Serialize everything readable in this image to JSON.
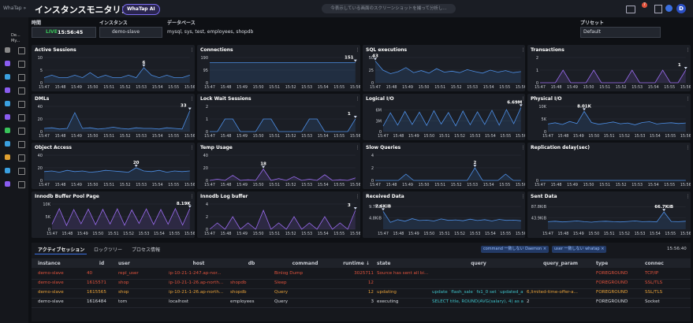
{
  "header": {
    "app": "WhaTap »",
    "title": "インスタンスモニタリング",
    "ai_button": "WhaTap AI",
    "search": "今表示している画面のスクリーンショットを撮って分析し...",
    "badge": "7",
    "avatar": "D"
  },
  "sidebar": {
    "project": "De...",
    "sub": "My..."
  },
  "filters": {
    "time_label": "時間",
    "live": "LIVE",
    "time": "15:56:45",
    "instance_label": "インスタンス",
    "instance": "demo-slave",
    "database_label": "データベース",
    "database": "mysql, sys, test, employees, shopdb",
    "preset_label": "プリセット",
    "preset": "Default"
  },
  "time_labels": [
    "15:47",
    "15:48",
    "15:49",
    "15:50",
    "15:51",
    "15:52",
    "15:53",
    "15:54",
    "15:55",
    "15:56"
  ],
  "panels": [
    {
      "title": "Active Sessions",
      "color": "#4d8fe6",
      "ylim": [
        0,
        10
      ],
      "yticks": [
        0,
        5,
        10
      ],
      "peak": 6,
      "values": [
        2,
        3,
        2,
        2,
        3,
        2,
        4,
        2,
        3,
        2,
        2,
        3,
        2,
        6,
        3,
        2,
        3,
        2,
        2,
        3
      ]
    },
    {
      "title": "Connections",
      "color": "#4d8fe6",
      "ylim": [
        0,
        190
      ],
      "yticks": [
        0,
        95,
        190
      ],
      "peak": 151,
      "values": [
        151,
        151,
        151,
        151,
        151,
        151,
        151,
        151,
        151,
        151,
        151,
        151,
        151,
        151,
        151,
        151,
        151,
        151,
        151,
        151
      ]
    },
    {
      "title": "SQL executions",
      "color": "#4d8fe6",
      "ylim": [
        0,
        50
      ],
      "yticks": [
        0,
        25,
        50
      ],
      "peak": 43,
      "values": [
        43,
        25,
        18,
        22,
        30,
        20,
        24,
        19,
        28,
        21,
        23,
        20,
        26,
        22,
        19,
        25,
        21,
        24,
        20,
        22
      ]
    },
    {
      "title": "Transactions",
      "color": "#9b6cf0",
      "ylim": [
        0,
        2
      ],
      "yticks": [
        0,
        1,
        2
      ],
      "peak": 1,
      "values": [
        0,
        0,
        0,
        1,
        0,
        0,
        0,
        1,
        0,
        0,
        0,
        0,
        1,
        0,
        0,
        0,
        1,
        0,
        0,
        1
      ]
    },
    {
      "title": "DMLs",
      "color": "#4d8fe6",
      "ylim": [
        0,
        40
      ],
      "yticks": [
        0,
        20,
        40
      ],
      "peak": 33,
      "values": [
        5,
        6,
        4,
        5,
        30,
        5,
        6,
        4,
        5,
        7,
        5,
        4,
        6,
        5,
        5,
        4,
        6,
        5,
        4,
        33
      ]
    },
    {
      "title": "Lock Wait Sessions",
      "color": "#4d8fe6",
      "ylim": [
        0,
        2
      ],
      "yticks": [
        0,
        1,
        2
      ],
      "peak": 1,
      "values": [
        0,
        0,
        1,
        1,
        0,
        0,
        0,
        1,
        1,
        0,
        0,
        0,
        0,
        1,
        1,
        0,
        0,
        0,
        0,
        1
      ]
    },
    {
      "title": "Logical I/O",
      "color": "#4d8fe6",
      "ylim": [
        0,
        7000000
      ],
      "yticks": [
        0,
        {
          "value": 3000000,
          "label": "3M"
        },
        {
          "value": 6000000,
          "label": "6M"
        }
      ],
      "peak": {
        "value": 6690000,
        "label": "6.69M"
      },
      "values": [
        1500000,
        5200000,
        1800000,
        5600000,
        2000000,
        5400000,
        1700000,
        5800000,
        2100000,
        5300000,
        1600000,
        5700000,
        1900000,
        5500000,
        2000000,
        5900000,
        1800000,
        6100000,
        2200000,
        6690000
      ]
    },
    {
      "title": "Physical I/O",
      "color": "#4d8fe6",
      "ylim": [
        0,
        10000
      ],
      "yticks": [
        0,
        {
          "value": 5000,
          "label": "5K"
        },
        {
          "value": 10000,
          "label": "10K"
        }
      ],
      "peak": {
        "value": 8010,
        "label": "8.01K"
      },
      "values": [
        3000,
        3500,
        2800,
        4000,
        3200,
        8010,
        3600,
        2900,
        3300,
        3800,
        3100,
        3400,
        2700,
        3600,
        3900,
        3000,
        3300,
        3500,
        3200,
        3400
      ]
    },
    {
      "title": "Object Access",
      "color": "#4d8fe6",
      "ylim": [
        0,
        40
      ],
      "yticks": [
        0,
        20,
        40
      ],
      "peak": 20,
      "values": [
        14,
        15,
        13,
        16,
        14,
        15,
        13,
        14,
        16,
        15,
        14,
        13,
        20,
        15,
        14,
        16,
        13,
        15,
        14,
        15
      ]
    },
    {
      "title": "Temp Usage",
      "color": "#9b6cf0",
      "ylim": [
        0,
        40
      ],
      "yticks": [
        0,
        20,
        40
      ],
      "peak": 18,
      "values": [
        0,
        2,
        0,
        8,
        0,
        1,
        0,
        18,
        0,
        3,
        0,
        6,
        0,
        2,
        0,
        9,
        0,
        1,
        0,
        4
      ]
    },
    {
      "title": "Slow Queries",
      "color": "#4d8fe6",
      "ylim": [
        0,
        4
      ],
      "yticks": [
        0,
        2,
        4
      ],
      "peak": 2,
      "values": [
        0,
        0,
        0,
        0,
        1,
        0,
        0,
        0,
        0,
        0,
        0,
        0,
        0,
        2,
        0,
        0,
        0,
        1,
        0,
        0
      ]
    },
    {
      "title": "Replication delay(sec)",
      "color": "#4d8fe6",
      "ylim": [
        0,
        1
      ],
      "yticks": [
        0
      ],
      "values": [
        0,
        0,
        0,
        0,
        0,
        0,
        0,
        0,
        0,
        0,
        0,
        0,
        0,
        0,
        0,
        0,
        0,
        0,
        0,
        0
      ]
    },
    {
      "title": "Innodb Buffer Pool Page",
      "color": "#9b6cf0",
      "ylim": [
        0,
        10000
      ],
      "yticks": [
        0,
        {
          "value": 5000,
          "label": "5K"
        },
        {
          "value": 10000,
          "label": "10K"
        }
      ],
      "peak": {
        "value": 8190,
        "label": "8.19K"
      },
      "values": [
        2000,
        8190,
        1500,
        7800,
        2200,
        8000,
        1800,
        7900,
        2100,
        8100,
        1600,
        7700,
        2300,
        8050,
        1900,
        7850,
        2000,
        8150,
        1700,
        8190
      ]
    },
    {
      "title": "Innodb Log buffer",
      "color": "#9b6cf0",
      "ylim": [
        0,
        4
      ],
      "yticks": [
        0,
        2,
        4
      ],
      "peak": 3,
      "values": [
        0,
        1,
        0,
        2,
        0,
        1,
        0,
        3,
        0,
        1,
        0,
        2,
        0,
        1,
        0,
        2,
        0,
        1,
        0,
        3
      ]
    },
    {
      "title": "Received Data",
      "color": "#4d8fe6",
      "ylim": [
        0,
        11000
      ],
      "yticks": [
        {
          "value": 4915,
          "label": "4.8KiB"
        },
        {
          "value": 9933,
          "label": "9.7KiB"
        }
      ],
      "peak": {
        "value": 7782,
        "label": "7.6KiB"
      },
      "values": [
        7782,
        3000,
        4200,
        3500,
        4600,
        3800,
        4000,
        3600,
        4500,
        3900,
        4100,
        3700,
        4400,
        3800,
        4200,
        3600,
        4300,
        3900,
        4000,
        3700
      ]
    },
    {
      "title": "Sent Data",
      "color": "#4d8fe6",
      "ylim": [
        0,
        100000
      ],
      "yticks": [
        {
          "value": 44954,
          "label": "43.9KiB"
        },
        {
          "value": 89907,
          "label": "87.8KiB"
        }
      ],
      "peak": {
        "value": 68301,
        "label": "66.7KiB"
      },
      "values": [
        30000,
        32000,
        29000,
        31000,
        33000,
        30000,
        28000,
        31000,
        32000,
        30000,
        29000,
        31000,
        33000,
        30000,
        31000,
        29000,
        68301,
        31000,
        30000,
        32000
      ]
    }
  ],
  "table": {
    "tabs": [
      "アクティブセッション",
      "ロックツリー",
      "プロセス情報"
    ],
    "chips": [
      "command 一致しない Daemon ×",
      "user 一致しない whatap ×"
    ],
    "time": "15:56:40",
    "columns": [
      "instance",
      "id",
      "user",
      "host",
      "db",
      "command",
      "runtime ↓",
      "state",
      "query",
      "query_param",
      "type",
      "connec"
    ],
    "rows": [
      {
        "color": "#e0533d",
        "cells": [
          "demo-slave",
          "40",
          "repl_user",
          "ip-10-21-1-247.ap-nor...",
          "",
          "Binlog Dump",
          "3025711",
          "Source has sent all bi...",
          "",
          "",
          "FOREGROUND",
          "TCP/IP"
        ]
      },
      {
        "color": "#e0533d",
        "cells": [
          "demo-slave",
          "1615571",
          "shop",
          "ip-10-21-1-26.ap-north...",
          "shopdb",
          "Sleep",
          "12",
          "",
          "",
          "",
          "FOREGROUND",
          "SSL/TLS"
        ]
      },
      {
        "color": "#e8a23a",
        "cells": [
          "demo-slave",
          "1615565",
          "shop",
          "ip-10-21-1-26.ap-north...",
          "shopdb",
          "Query",
          "12",
          "updating",
          "update `flash_sale` fs1_0 set `updated_at`=cur...",
          "6,limited-time-offer-a...",
          "FOREGROUND",
          "SSL/TLS"
        ]
      },
      {
        "color": "#d8dbe2",
        "cells": [
          "demo-slave",
          "1616484",
          "tom",
          "localhost",
          "employees",
          "Query",
          "3",
          "executing",
          "SELECT title, ROUND(AVG(salary), 4) as avg_s...",
          "2",
          "FOREGROUND",
          "Socket"
        ]
      }
    ]
  }
}
